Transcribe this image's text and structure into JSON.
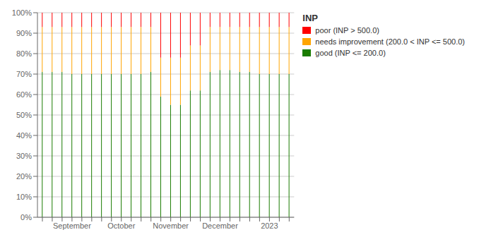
{
  "chart_data": {
    "type": "bar",
    "legend_title": "INP",
    "categories": [
      null,
      null,
      null,
      "September",
      null,
      null,
      null,
      null,
      "October",
      null,
      null,
      null,
      null,
      "November",
      null,
      null,
      null,
      null,
      "December",
      null,
      null,
      null,
      null,
      "2023",
      null,
      null
    ],
    "series": [
      {
        "name": "good (INP <= 200.0)",
        "color": "#1a7c00",
        "values": [
          71,
          71,
          71,
          70,
          70,
          70,
          70,
          70,
          70,
          70,
          70,
          71,
          59,
          55,
          55,
          62,
          62,
          71,
          72,
          72,
          71,
          71,
          70,
          70,
          70,
          70
        ]
      },
      {
        "name": "needs improvement (200.0 < INP <= 500.0)",
        "color": "#ffa500",
        "values": [
          22,
          22,
          22,
          23,
          23,
          23,
          23,
          23,
          23,
          23,
          23,
          22,
          19,
          23,
          23,
          22,
          22,
          22,
          21,
          21,
          22,
          22,
          23,
          23,
          23,
          23
        ]
      },
      {
        "name": "poor (INP > 500.0)",
        "color": "#ff0000",
        "values": [
          7,
          7,
          7,
          7,
          7,
          7,
          7,
          7,
          7,
          7,
          7,
          7,
          22,
          22,
          22,
          16,
          16,
          7,
          7,
          7,
          7,
          7,
          7,
          7,
          7,
          7
        ]
      }
    ],
    "stacked": true,
    "ylim": [
      0,
      100
    ],
    "yticks": [
      {
        "value": 0,
        "label": "0%"
      },
      {
        "value": 10,
        "label": "10%"
      },
      {
        "value": 20,
        "label": "20%"
      },
      {
        "value": 30,
        "label": "30%"
      },
      {
        "value": 40,
        "label": "40%"
      },
      {
        "value": 50,
        "label": "50%"
      },
      {
        "value": 60,
        "label": "60%"
      },
      {
        "value": 70,
        "label": "70%"
      },
      {
        "value": 80,
        "label": "80%"
      },
      {
        "value": 90,
        "label": "90%"
      },
      {
        "value": 100,
        "label": "100%"
      }
    ],
    "grid": true,
    "legend": "right"
  }
}
